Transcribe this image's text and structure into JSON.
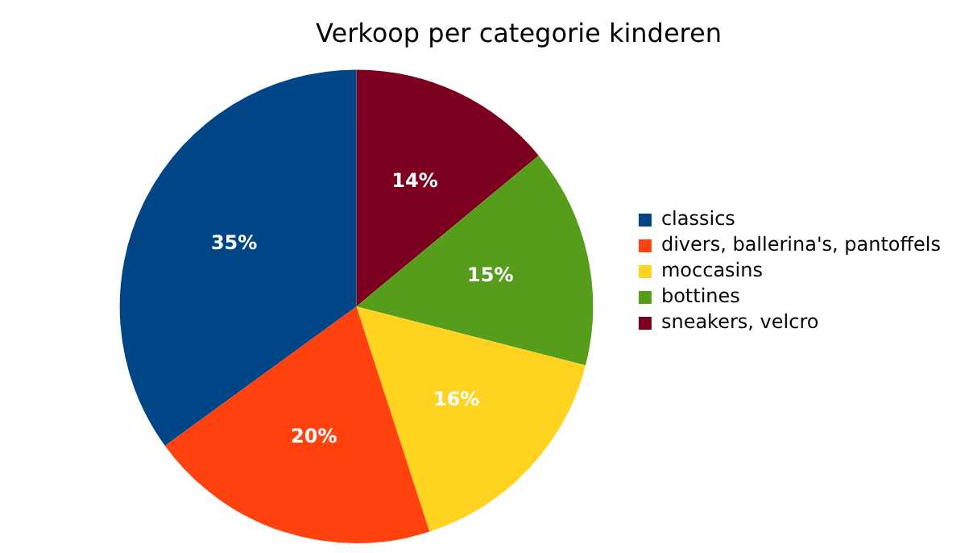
{
  "chart_data": {
    "type": "pie",
    "title": "Verkoop per categorie kinderen",
    "categories": [
      "classics",
      "divers, ballerina's, pantoffels",
      "moccasins",
      "bottines",
      "sneakers, velcro"
    ],
    "values": [
      35,
      20,
      16,
      15,
      14
    ],
    "colors": [
      "#004586",
      "#ff420e",
      "#ffd320",
      "#579d1c",
      "#7e0021"
    ],
    "value_labels": [
      "35%",
      "20%",
      "16%",
      "15%",
      "14%"
    ],
    "legend": "right"
  }
}
